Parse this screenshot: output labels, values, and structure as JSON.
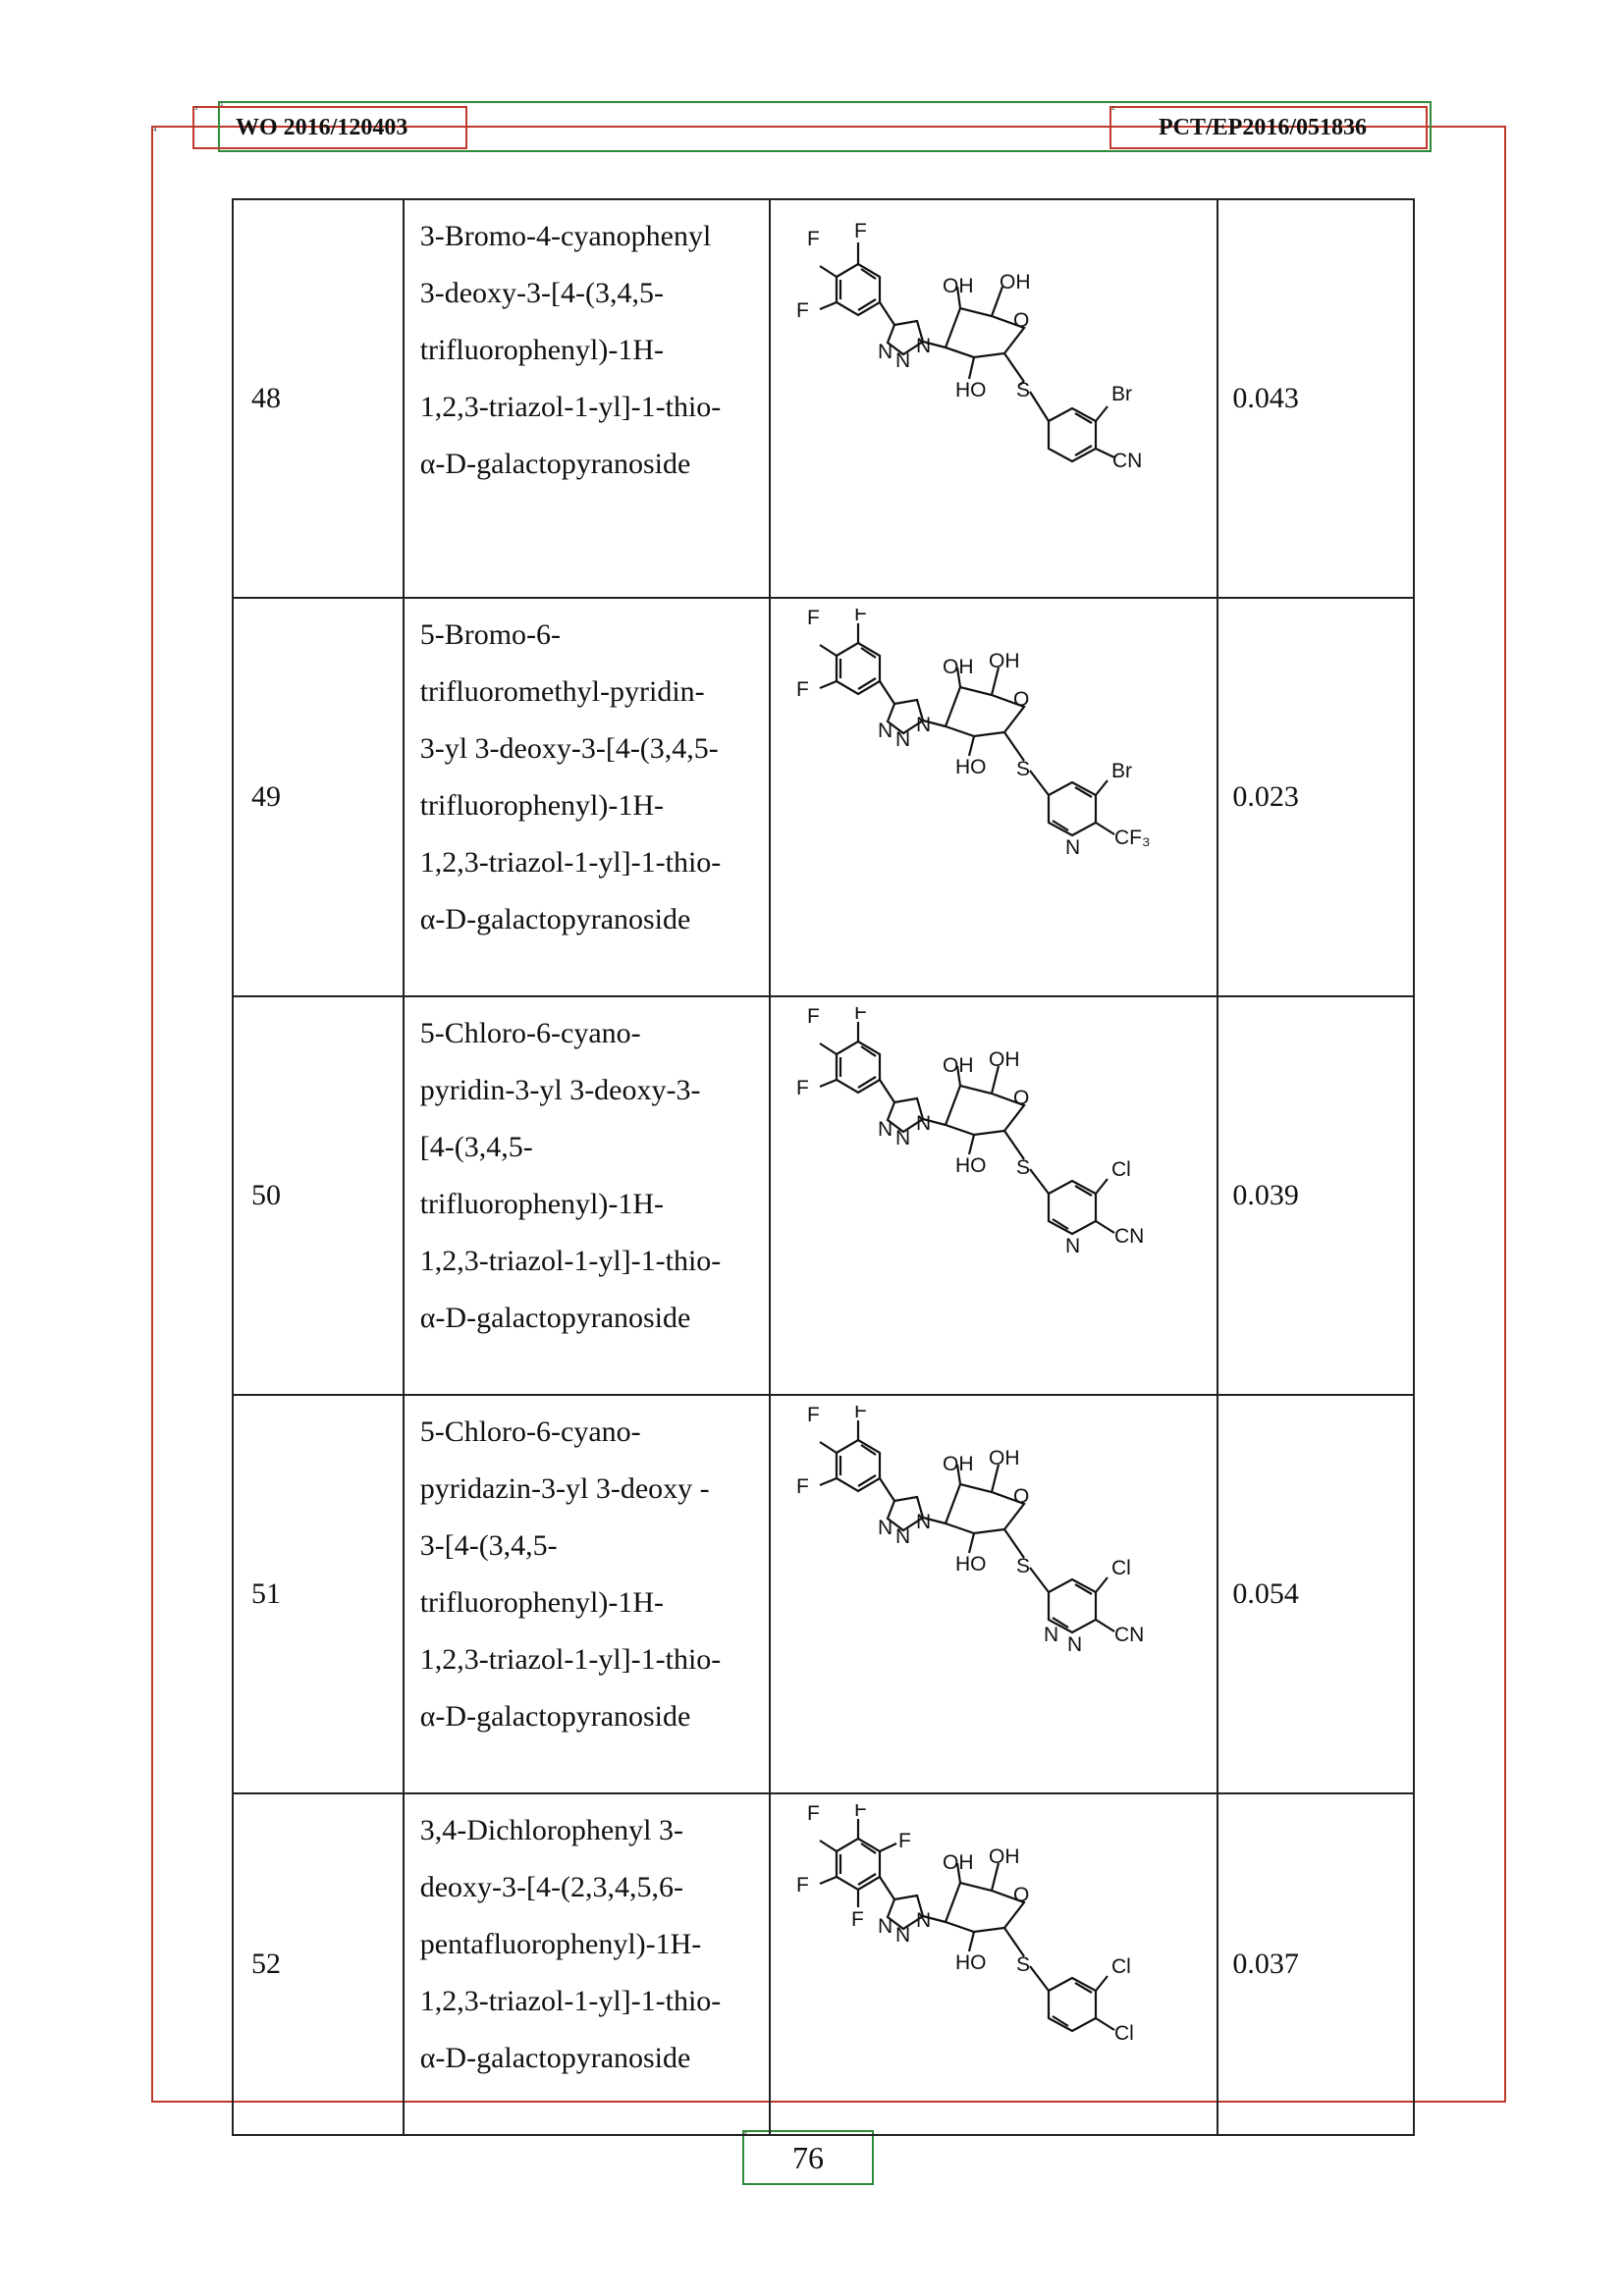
{
  "header": {
    "left": "WO 2016/120403",
    "right": "PCT/EP2016/051836"
  },
  "table": {
    "rows": [
      {
        "number": "48",
        "name": "3-Bromo-4-cyanophenyl\n3-deoxy-3-[4-(3,4,5-\ntrifluorophenyl)-1H-\n1,2,3-triazol-1-yl]-1-thio-\nα-D-galactopyranoside",
        "value": "0.043",
        "labels": {
          "f1": "F",
          "f2": "F",
          "f3": "F",
          "oh1": "OH",
          "oh2": "OH",
          "o": "O",
          "n1": "N",
          "n2": "N",
          "n3": "N",
          "ho": "HO",
          "s": "S",
          "sub1": "Br",
          "sub2": "CN"
        }
      },
      {
        "number": "49",
        "name": "5-Bromo-6-\ntrifluoromethyl-pyridin-\n3-yl 3-deoxy-3-[4-(3,4,5-\ntrifluorophenyl)-1H-\n1,2,3-triazol-1-yl]-1-thio-\nα-D-galactopyranoside",
        "value": "0.023",
        "labels": {
          "f1": "F",
          "f2": "F",
          "f3": "F",
          "oh1": "OH",
          "oh2": "OH",
          "o": "O",
          "n1": "N",
          "n2": "N",
          "n3": "N",
          "ho": "HO",
          "s": "S",
          "sub1": "Br",
          "sub2": "CF₃",
          "ring_n": "N"
        }
      },
      {
        "number": "50",
        "name": "5-Chloro-6-cyano-\npyridin-3-yl 3-deoxy-3-\n[4-(3,4,5-\ntrifluorophenyl)-1H-\n1,2,3-triazol-1-yl]-1-thio-\nα-D-galactopyranoside",
        "value": "0.039",
        "labels": {
          "f1": "F",
          "f2": "F",
          "f3": "F",
          "oh1": "OH",
          "oh2": "OH",
          "o": "O",
          "n1": "N",
          "n2": "N",
          "n3": "N",
          "ho": "HO",
          "s": "S",
          "sub1": "Cl",
          "sub2": "CN",
          "ring_n": "N"
        }
      },
      {
        "number": "51",
        "name": "5-Chloro-6-cyano-\npyridazin-3-yl 3-deoxy -\n3-[4-(3,4,5-\ntrifluorophenyl)-1H-\n1,2,3-triazol-1-yl]-1-thio-\nα-D-galactopyranoside",
        "value": "0.054",
        "labels": {
          "f1": "F",
          "f2": "F",
          "f3": "F",
          "oh1": "OH",
          "oh2": "OH",
          "o": "O",
          "n1": "N",
          "n2": "N",
          "n3": "N",
          "ho": "HO",
          "s": "S",
          "sub1": "Cl",
          "sub2": "CN",
          "ring_n": "N",
          "ring_n2": "N"
        }
      },
      {
        "number": "52",
        "name": "3,4-Dichlorophenyl 3-\ndeoxy-3-[4-(2,3,4,5,6-\npentafluorophenyl)-1H-\n1,2,3-triazol-1-yl]-1-thio-\nα-D-galactopyranoside",
        "value": "0.037",
        "labels": {
          "f1": "F",
          "f2": "F",
          "f3": "F",
          "f4": "F",
          "f5": "F",
          "oh1": "OH",
          "oh2": "OH",
          "o": "O",
          "n1": "N",
          "n2": "N",
          "n3": "N",
          "ho": "HO",
          "s": "S",
          "sub1": "Cl",
          "sub2": "Cl"
        }
      }
    ]
  },
  "page_number": "76"
}
